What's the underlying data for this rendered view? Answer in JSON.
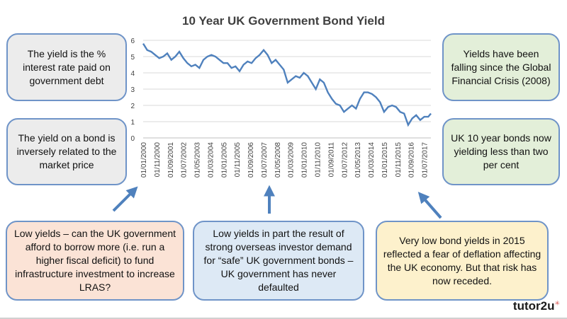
{
  "chart_data": {
    "type": "line",
    "title": "10 Year UK Government Bond Yield",
    "ylim": [
      0,
      6
    ],
    "yticks": [
      "0",
      "1",
      "2",
      "3",
      "4",
      "5",
      "6"
    ],
    "xlim": [
      "2000-01-01",
      "2017-12-01"
    ],
    "xticks": [
      "01/01/2000",
      "01/11/2000",
      "01/09/2001",
      "01/07/2002",
      "01/05/2003",
      "01/03/2004",
      "01/01/2005",
      "01/11/2005",
      "01/09/2006",
      "01/07/2007",
      "01/05/2008",
      "01/03/2009",
      "01/01/2010",
      "01/11/2010",
      "01/09/2011",
      "01/07/2012",
      "01/05/2013",
      "01/03/2014",
      "01/01/2015",
      "01/11/2015",
      "01/09/2016",
      "01/07/2017"
    ],
    "grid": true,
    "line_color": "#4f81bd",
    "series": [
      {
        "x": [
          "2000-01",
          "2000-04",
          "2000-07",
          "2000-10",
          "2001-01",
          "2001-04",
          "2001-07",
          "2001-10",
          "2002-01",
          "2002-04",
          "2002-07",
          "2002-10",
          "2003-01",
          "2003-04",
          "2003-07",
          "2003-10",
          "2004-01",
          "2004-04",
          "2004-07",
          "2004-10",
          "2005-01",
          "2005-04",
          "2005-07",
          "2005-10",
          "2006-01",
          "2006-04",
          "2006-07",
          "2006-10",
          "2007-01",
          "2007-04",
          "2007-07",
          "2007-10",
          "2008-01",
          "2008-04",
          "2008-07",
          "2008-10",
          "2009-01",
          "2009-04",
          "2009-07",
          "2009-10",
          "2010-01",
          "2010-04",
          "2010-07",
          "2010-10",
          "2011-01",
          "2011-04",
          "2011-07",
          "2011-10",
          "2012-01",
          "2012-04",
          "2012-07",
          "2012-10",
          "2013-01",
          "2013-04",
          "2013-07",
          "2013-10",
          "2014-01",
          "2014-04",
          "2014-07",
          "2014-10",
          "2015-01",
          "2015-04",
          "2015-07",
          "2015-10",
          "2016-01",
          "2016-04",
          "2016-07",
          "2016-10",
          "2017-01",
          "2017-04",
          "2017-07",
          "2017-10",
          "2017-12"
        ],
        "values": [
          5.8,
          5.4,
          5.3,
          5.1,
          4.9,
          5.0,
          5.2,
          4.8,
          5.0,
          5.3,
          4.9,
          4.6,
          4.4,
          4.5,
          4.3,
          4.8,
          5.0,
          5.1,
          5.0,
          4.8,
          4.6,
          4.6,
          4.3,
          4.4,
          4.1,
          4.5,
          4.7,
          4.6,
          4.9,
          5.1,
          5.4,
          5.1,
          4.6,
          4.8,
          4.5,
          4.2,
          3.4,
          3.6,
          3.8,
          3.7,
          4.0,
          3.8,
          3.4,
          3.0,
          3.6,
          3.4,
          2.8,
          2.4,
          2.1,
          2.0,
          1.6,
          1.8,
          2.0,
          1.8,
          2.4,
          2.8,
          2.8,
          2.7,
          2.5,
          2.2,
          1.6,
          1.9,
          2.0,
          1.9,
          1.6,
          1.5,
          0.8,
          1.2,
          1.4,
          1.1,
          1.3,
          1.3,
          1.5
        ]
      }
    ]
  },
  "boxes": {
    "yield_def": "The yield is the % interest rate paid on government debt",
    "inverse": "The yield on a bond is inversely related to the market price",
    "falling": "Yields have been falling since the Global Financial Crisis (2008)",
    "below_two": "UK 10 year bonds now yielding less than two per cent",
    "low_yields_borrow": "Low yields – can the UK government afford to borrow more (i.e. run a higher fiscal deficit) to fund infrastructure investment to increase LRAS?",
    "overseas_demand": "Low yields in part the result of strong overseas investor demand for “safe” UK government bonds – UK government has never defaulted",
    "deflation": "Very low bond yields in 2015 reflected a fear of deflation affecting the UK economy. But that risk has now receded."
  },
  "logo": {
    "text": "tutor2u",
    "mark": "✳"
  },
  "colors": {
    "arrow": "#4f81bd",
    "title": "#404040"
  }
}
